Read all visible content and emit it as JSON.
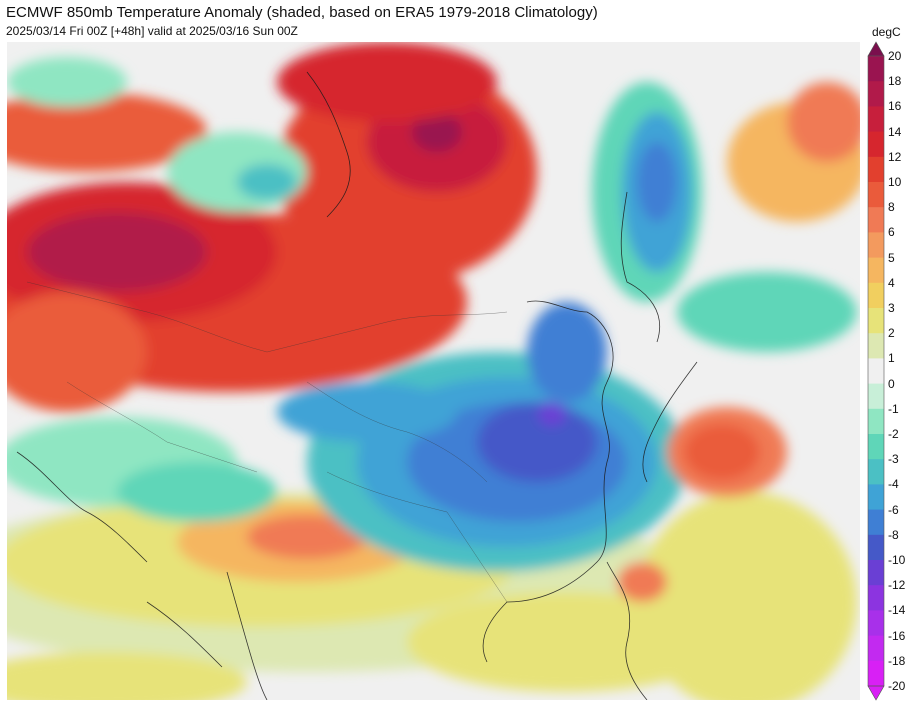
{
  "header": {
    "title": "ECMWF 850mb Temperature Anomaly (shaded, based on ERA5 1979-2018 Climatology)",
    "subtitle": "2025/03/14 Fri 00Z [+48h] valid at 2025/03/16 Sun 00Z"
  },
  "colorbar": {
    "unit": "degC",
    "levels": [
      {
        "value": "20",
        "color": "#7a0f4d"
      },
      {
        "value": "18",
        "color": "#9a1450"
      },
      {
        "value": "16",
        "color": "#b11a4a"
      },
      {
        "value": "14",
        "color": "#c71f3c"
      },
      {
        "value": "12",
        "color": "#d6262e"
      },
      {
        "value": "10",
        "color": "#e2402e"
      },
      {
        "value": "8",
        "color": "#ea5b3b"
      },
      {
        "value": "6",
        "color": "#f07a55"
      },
      {
        "value": "5",
        "color": "#f39a5e"
      },
      {
        "value": "4",
        "color": "#f5b660"
      },
      {
        "value": "3",
        "color": "#f1cf5f"
      },
      {
        "value": "2",
        "color": "#e7e379"
      },
      {
        "value": "1",
        "color": "#dde8b2"
      },
      {
        "value": "0",
        "color": "#f0f0f0"
      },
      {
        "value": "-1",
        "color": "#c8efd8"
      },
      {
        "value": "-2",
        "color": "#8fe6c2"
      },
      {
        "value": "-3",
        "color": "#5fd6b8"
      },
      {
        "value": "-4",
        "color": "#4bc0c4"
      },
      {
        "value": "-6",
        "color": "#3fa3d6"
      },
      {
        "value": "-8",
        "color": "#3f7fd4"
      },
      {
        "value": "-10",
        "color": "#4559c8"
      },
      {
        "value": "-12",
        "color": "#6a3fd4"
      },
      {
        "value": "-14",
        "color": "#8c34e0"
      },
      {
        "value": "-16",
        "color": "#a830ea"
      },
      {
        "value": "-18",
        "color": "#c22af0"
      },
      {
        "value": "-20",
        "color": "#d820f5"
      }
    ]
  }
}
